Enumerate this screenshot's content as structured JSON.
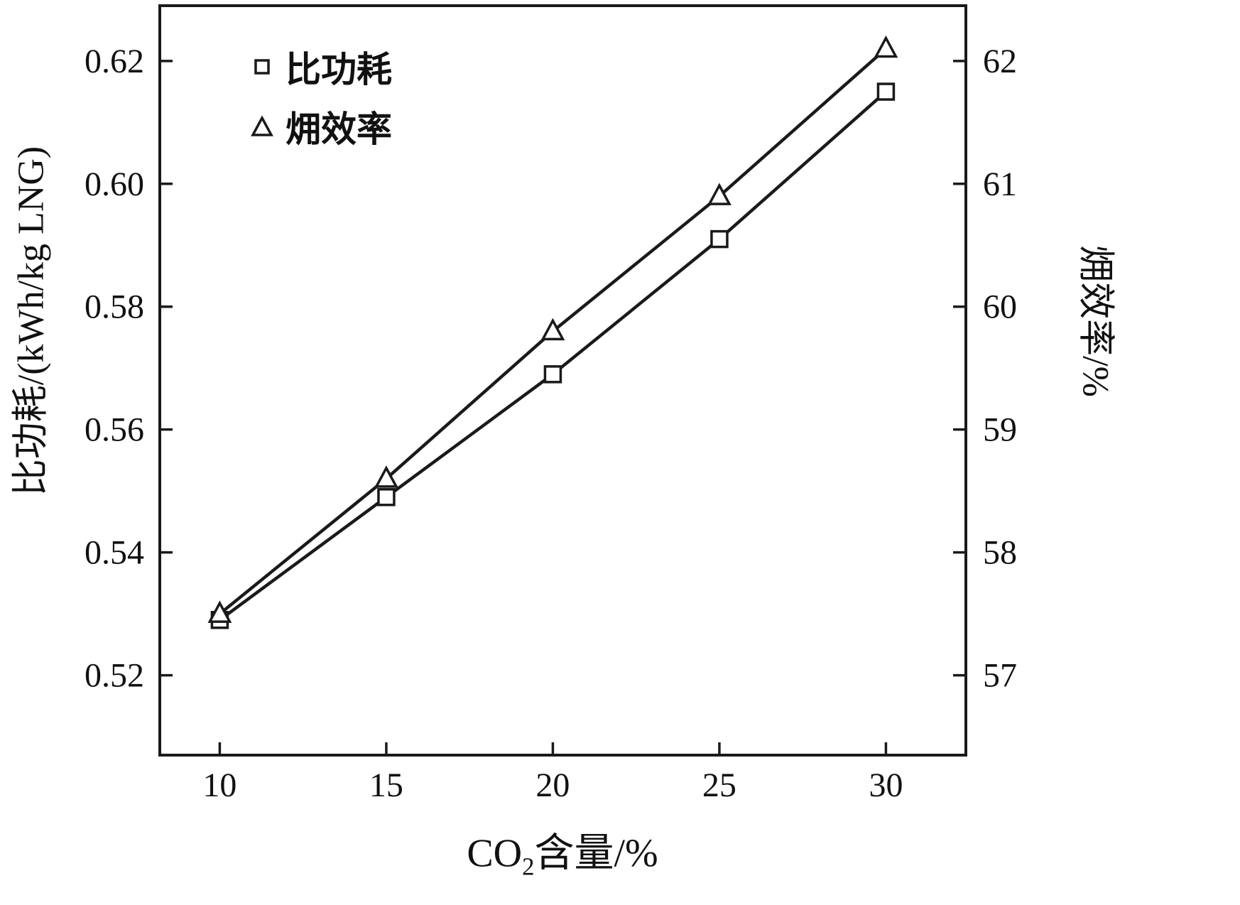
{
  "figure": {
    "background": "#ffffff",
    "ink_color": "#1a1a1a",
    "text_color": "#111111"
  },
  "chart_data": {
    "type": "line",
    "x": [
      10,
      15,
      20,
      25,
      30
    ],
    "series": [
      {
        "name": "比功耗",
        "axis": "left",
        "marker": "square",
        "values": [
          0.529,
          0.549,
          0.569,
          0.591,
          0.615
        ]
      },
      {
        "name": "㶲效率",
        "axis": "right",
        "marker": "triangle",
        "values": [
          57.5,
          58.6,
          59.8,
          60.9,
          62.1
        ]
      }
    ],
    "xlabel_parts": {
      "pre": "CO",
      "sub": "2",
      "post": "含量/%"
    },
    "ylabel_left": "比功耗/(kWh/kg LNG)",
    "ylabel_right": "㶲效率/%",
    "x_ticks": [
      10,
      15,
      20,
      25,
      30
    ],
    "x_tick_labels": [
      "10",
      "15",
      "20",
      "25",
      "30"
    ],
    "y_left_ticks": [
      0.52,
      0.54,
      0.56,
      0.58,
      0.6,
      0.62
    ],
    "y_left_tick_labels": [
      "0.52",
      "0.54",
      "0.56",
      "0.58",
      "0.60",
      "0.62"
    ],
    "y_right_ticks": [
      57,
      58,
      59,
      60,
      61,
      62
    ],
    "y_right_tick_labels": [
      "57",
      "58",
      "59",
      "60",
      "61",
      "62"
    ],
    "xlim": [
      8.2,
      32.4
    ],
    "ylim_left": [
      0.507,
      0.629
    ],
    "ylim_right": [
      56.35,
      62.45
    ],
    "grid": false,
    "legend": {
      "position": "top-left-inside",
      "entries": [
        {
          "label": "比功耗",
          "marker": "square"
        },
        {
          "label": "㶲效率",
          "marker": "triangle"
        }
      ]
    },
    "line_color": "#1a1a1a",
    "marker_fill": "#ffffff"
  }
}
